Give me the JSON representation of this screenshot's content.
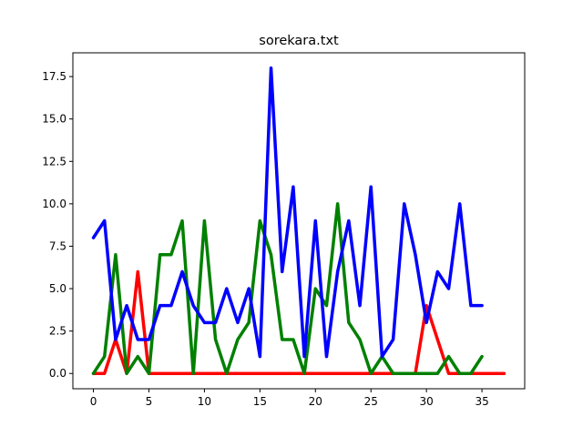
{
  "chart_data": {
    "type": "line",
    "title": "sorekara.txt",
    "xlabel": "",
    "ylabel": "",
    "xlim": [
      -1.85,
      38.85
    ],
    "ylim": [
      -0.9,
      18.9
    ],
    "x_ticks": [
      0,
      5,
      10,
      15,
      20,
      25,
      30,
      35
    ],
    "y_ticks": [
      0.0,
      2.5,
      5.0,
      7.5,
      10.0,
      12.5,
      15.0,
      17.5
    ],
    "x_tick_labels": [
      "0",
      "5",
      "10",
      "15",
      "20",
      "25",
      "30",
      "35"
    ],
    "y_tick_labels": [
      "0.0",
      "2.5",
      "5.0",
      "7.5",
      "10.0",
      "12.5",
      "15.0",
      "17.5"
    ],
    "grid": false,
    "series": [
      {
        "color": "#ff0000",
        "x": [
          0,
          1,
          2,
          3,
          4,
          5,
          6,
          7,
          8,
          9,
          10,
          11,
          12,
          13,
          14,
          15,
          16,
          17,
          18,
          19,
          20,
          21,
          22,
          23,
          24,
          25,
          26,
          27,
          28,
          29,
          30,
          31,
          32,
          33,
          34,
          35,
          36,
          37
        ],
        "values": [
          0,
          0,
          2,
          0,
          6,
          0,
          0,
          0,
          0,
          0,
          0,
          0,
          0,
          0,
          0,
          0,
          0,
          0,
          0,
          0,
          0,
          0,
          0,
          0,
          0,
          0,
          0,
          0,
          0,
          0,
          4,
          2,
          0,
          0,
          0,
          0,
          0,
          0
        ]
      },
      {
        "color": "#008000",
        "x": [
          0,
          1,
          2,
          3,
          4,
          5,
          6,
          7,
          8,
          9,
          10,
          11,
          12,
          13,
          14,
          15,
          16,
          17,
          18,
          19,
          20,
          21,
          22,
          23,
          24,
          25,
          26,
          27,
          28,
          29,
          30,
          31,
          32,
          33,
          34,
          35
        ],
        "values": [
          0,
          1,
          7,
          0,
          1,
          0,
          7,
          7,
          9,
          0,
          9,
          2,
          0,
          2,
          3,
          9,
          7,
          2,
          2,
          0,
          5,
          4,
          10,
          3,
          2,
          0,
          1,
          0,
          0,
          0,
          0,
          0,
          1,
          0,
          0,
          1
        ]
      },
      {
        "color": "#0000ff",
        "x": [
          0,
          1,
          2,
          3,
          4,
          5,
          6,
          7,
          8,
          9,
          10,
          11,
          12,
          13,
          14,
          15,
          16,
          17,
          18,
          19,
          20,
          21,
          22,
          23,
          24,
          25,
          26,
          27,
          28,
          29,
          30,
          31,
          32,
          33,
          34,
          35
        ],
        "values": [
          8,
          9,
          2,
          4,
          2,
          2,
          4,
          4,
          6,
          4,
          3,
          3,
          5,
          3,
          5,
          1,
          18,
          6,
          11,
          1,
          9,
          1,
          6,
          9,
          4,
          11,
          1,
          2,
          10,
          7,
          3,
          6,
          5,
          10,
          4,
          4
        ]
      }
    ]
  }
}
